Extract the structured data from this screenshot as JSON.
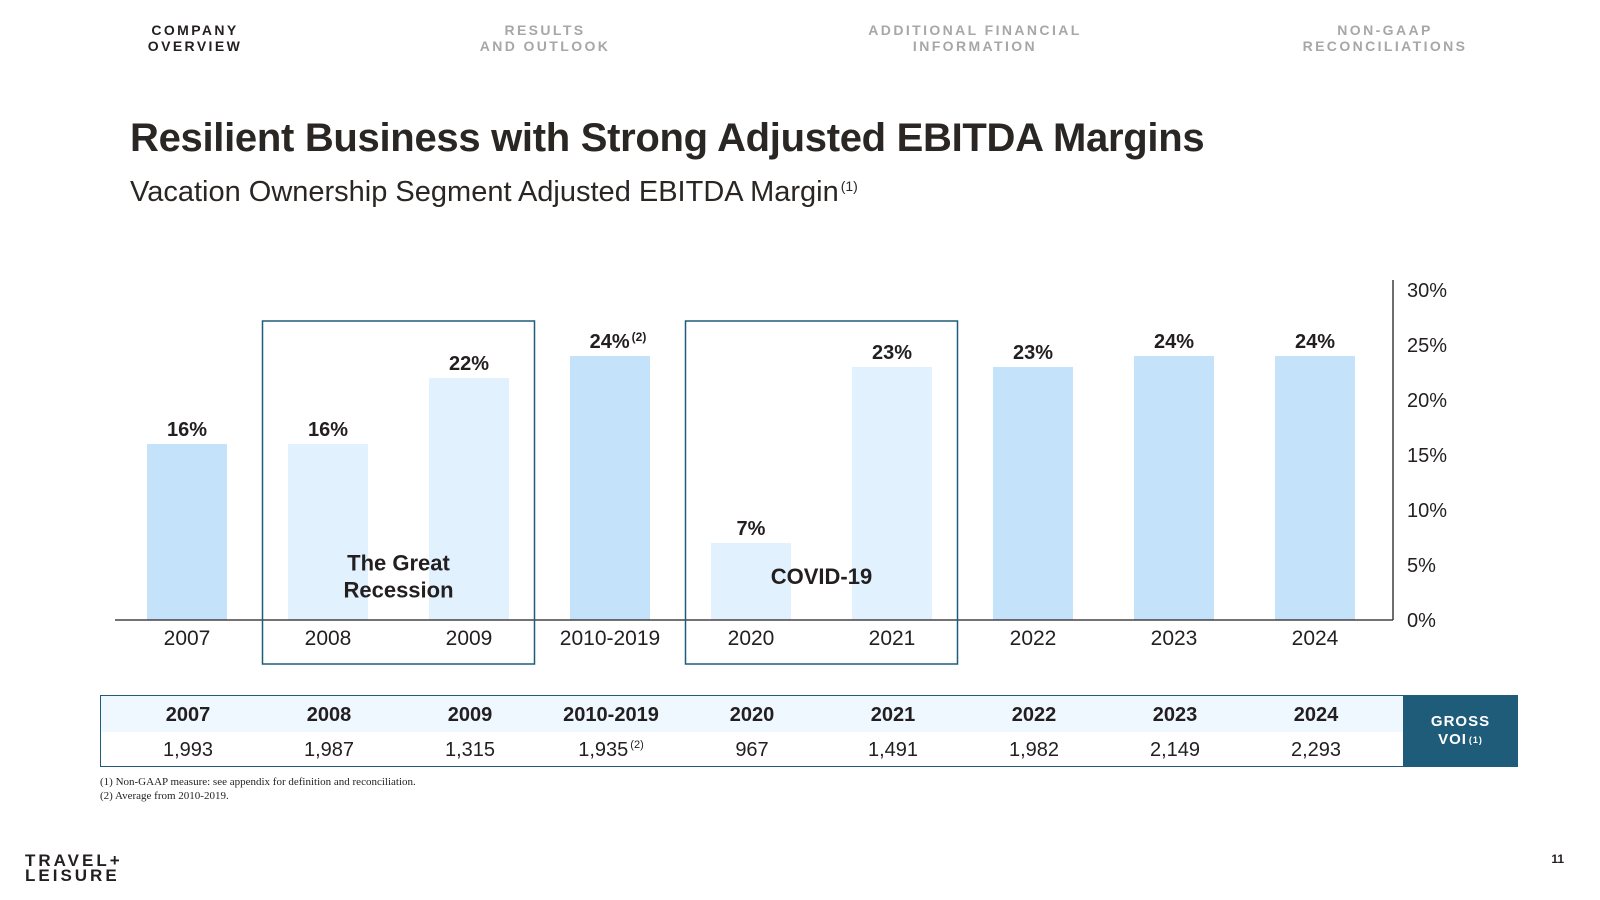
{
  "nav": {
    "items": [
      {
        "line1": "COMPANY",
        "line2": "OVERVIEW",
        "active": true
      },
      {
        "line1": "RESULTS",
        "line2": "AND OUTLOOK",
        "active": false
      },
      {
        "line1": "ADDITIONAL FINANCIAL",
        "line2": "INFORMATION",
        "active": false
      },
      {
        "line1": "NON-GAAP",
        "line2": "RECONCILIATIONS",
        "active": false
      }
    ]
  },
  "header": {
    "title": "Resilient Business with Strong Adjusted EBITDA Margins",
    "subtitle": "Vacation Ownership Segment Adjusted EBITDA Margin",
    "subtitle_note": "(1)"
  },
  "colors": {
    "bar_default": "#c4e3fb",
    "bar_highlighted_period": "#e1f1fd",
    "box_border": "#1f5c7a",
    "table_header_bg": "#eff7ff",
    "gross_voi_bg": "#1f5c7a"
  },
  "chart_data": {
    "type": "bar",
    "title": "Vacation Ownership Segment Adjusted EBITDA Margin",
    "categories": [
      "2007",
      "2008",
      "2009",
      "2010-2019",
      "2020",
      "2021",
      "2022",
      "2023",
      "2024"
    ],
    "values": [
      16,
      16,
      22,
      24,
      7,
      23,
      23,
      24,
      24
    ],
    "value_labels": [
      "16%",
      "16%",
      "22%",
      "24%",
      "7%",
      "23%",
      "23%",
      "24%",
      "24%"
    ],
    "value_label_notes": [
      "",
      "",
      "",
      "(2)",
      "",
      "",
      "",
      "",
      ""
    ],
    "highlighted": [
      false,
      true,
      true,
      false,
      true,
      true,
      false,
      false,
      false
    ],
    "ylim": [
      0,
      30
    ],
    "yticks": [
      0,
      5,
      10,
      15,
      20,
      25,
      30
    ],
    "ytick_labels": [
      "0%",
      "5%",
      "10%",
      "15%",
      "20%",
      "25%",
      "30%"
    ],
    "y_axis_position": "right",
    "annotations": [
      {
        "text_lines": [
          "The Great",
          "Recession"
        ],
        "categories": [
          "2008",
          "2009"
        ]
      },
      {
        "text_lines": [
          "COVID-19"
        ],
        "categories": [
          "2020",
          "2021"
        ]
      }
    ]
  },
  "table": {
    "years": [
      "2007",
      "2008",
      "2009",
      "2010-2019",
      "2020",
      "2021",
      "2022",
      "2023",
      "2024"
    ],
    "gross_voi": [
      "1,993",
      "1,987",
      "1,315",
      "1,935",
      "967",
      "1,491",
      "1,982",
      "2,149",
      "2,293"
    ],
    "gross_voi_notes": [
      "",
      "",
      "",
      "(2)",
      "",
      "",
      "",
      "",
      ""
    ],
    "label_line1": "GROSS",
    "label_line2": "VOI",
    "label_note": "(1)"
  },
  "footnotes": [
    "(1) Non-GAAP measure: see appendix for definition and reconciliation.",
    "(2) Average from 2010-2019."
  ],
  "logo": {
    "line1": "TRAVEL+",
    "line2": "LEISURE"
  },
  "page_number": "11"
}
